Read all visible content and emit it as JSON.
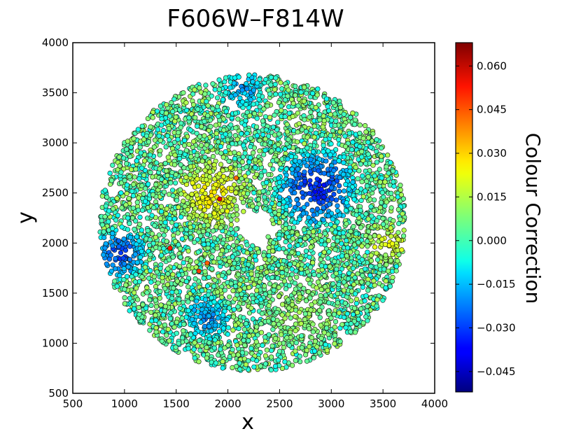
{
  "chart_data": {
    "type": "scatter",
    "title": "F606W–F814W",
    "xlabel": "x",
    "ylabel": "y",
    "xlim": [
      500,
      4000
    ],
    "ylim": [
      500,
      4000
    ],
    "x_ticks": [
      "500",
      "1000",
      "1500",
      "2000",
      "2500",
      "3000",
      "3500",
      "4000"
    ],
    "y_ticks": [
      "500",
      "1000",
      "1500",
      "2000",
      "2500",
      "3000",
      "3500",
      "4000"
    ],
    "colorbar": {
      "label": "Colour Correction",
      "range": [
        -0.052,
        0.068
      ],
      "ticks": [
        {
          "value": 0.06,
          "label": "0.060"
        },
        {
          "value": 0.045,
          "label": "0.045"
        },
        {
          "value": 0.03,
          "label": "0.030"
        },
        {
          "value": 0.015,
          "label": "0.015"
        },
        {
          "value": 0.0,
          "label": "0.000"
        },
        {
          "value": -0.015,
          "label": "−0.015"
        },
        {
          "value": -0.03,
          "label": "−0.030"
        },
        {
          "value": -0.045,
          "label": "−0.045"
        }
      ],
      "colormap": "jet"
    },
    "field": {
      "center": [
        2240,
        2200
      ],
      "outer_radius": 1480,
      "hole_center": [
        2260,
        2150
      ],
      "hole_radius": 170,
      "point_count": 5200,
      "seed": 606814
    },
    "regions": [
      {
        "name": "east-blue-clump",
        "center": [
          2850,
          2550
        ],
        "radius": 420,
        "value": -0.036
      },
      {
        "name": "west-blue-clump",
        "center": [
          960,
          1900
        ],
        "radius": 280,
        "value": -0.032
      },
      {
        "name": "south-blue-patch",
        "center": [
          1800,
          1250
        ],
        "radius": 250,
        "value": -0.022
      },
      {
        "name": "north-blue-rim",
        "center": [
          2150,
          3550
        ],
        "radius": 260,
        "value": -0.018
      },
      {
        "name": "core-yellow",
        "center": [
          1850,
          2500
        ],
        "radius": 380,
        "value": 0.026
      },
      {
        "name": "southeast-green",
        "center": [
          2700,
          1300
        ],
        "radius": 380,
        "value": 0.01
      },
      {
        "name": "east-rim-yellow",
        "center": [
          3550,
          2000
        ],
        "radius": 220,
        "value": 0.022
      }
    ],
    "outliers": [
      {
        "x": 1920,
        "y": 2440,
        "value": 0.056
      },
      {
        "x": 1440,
        "y": 1950,
        "value": 0.05
      },
      {
        "x": 1720,
        "y": 1720,
        "value": 0.046
      },
      {
        "x": 1800,
        "y": 1800,
        "value": 0.042
      },
      {
        "x": 2080,
        "y": 2650,
        "value": 0.04
      }
    ]
  }
}
